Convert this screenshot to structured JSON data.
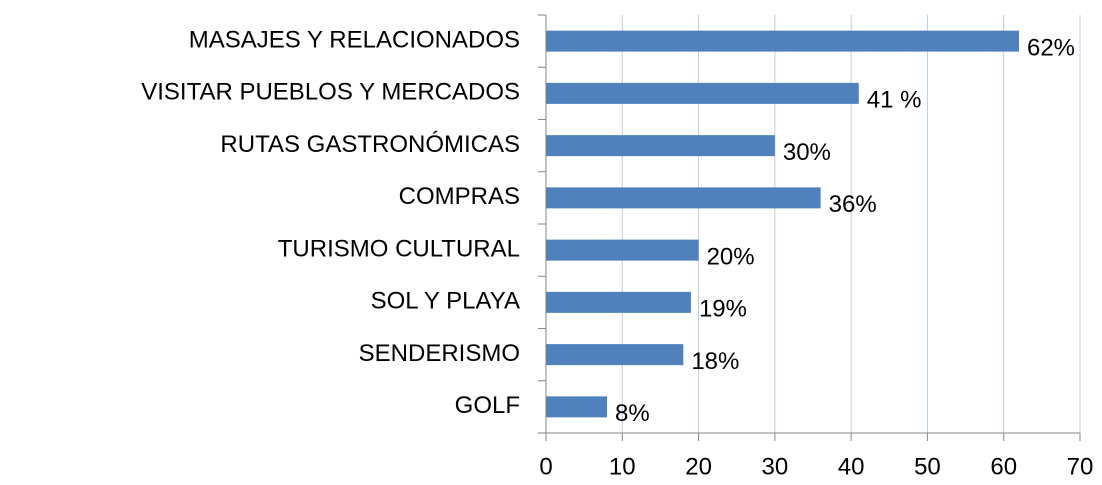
{
  "chart_data": {
    "type": "barh",
    "categories": [
      "MASAJES Y RELACIONADOS",
      "VISITAR PUEBLOS Y MERCADOS",
      "RUTAS GASTRONÓMICAS",
      "COMPRAS",
      "TURISMO CULTURAL",
      "SOL Y PLAYA",
      "SENDERISMO",
      "GOLF"
    ],
    "values": [
      62,
      41,
      30,
      36,
      20,
      19,
      18,
      8
    ],
    "value_labels": [
      "62%",
      "41 %",
      "30%",
      "36%",
      "20%",
      "19%",
      "18%",
      "8%"
    ],
    "color": "#4f81bd",
    "xlim": [
      0,
      70
    ],
    "xticks": [
      0,
      10,
      20,
      30,
      40,
      50,
      60,
      70
    ],
    "grid": true
  }
}
